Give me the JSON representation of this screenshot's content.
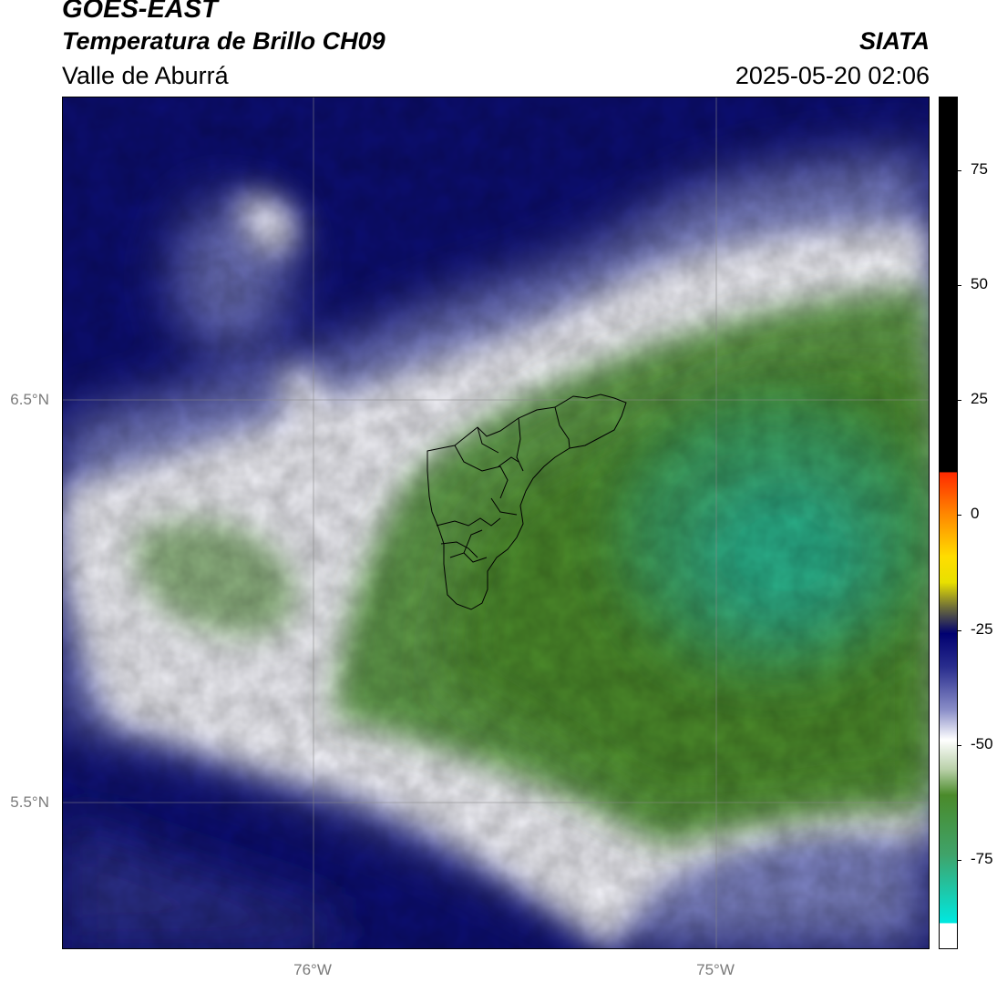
{
  "title": {
    "satellite": "GOES-EAST",
    "product": "Temperatura de Brillo CH09",
    "region": "Valle de Aburrá",
    "organization": "SIATA",
    "datetime": "2025-05-20 02:06"
  },
  "map": {
    "lat_labels": [
      "6.5°N",
      "5.5°N"
    ],
    "lon_labels": [
      "76°W",
      "75°W"
    ],
    "gridlines": true,
    "overlay": "municipal boundaries of Valle de Aburrá"
  },
  "colorbar": {
    "tick_labels": [
      "75",
      "50",
      "25",
      "0",
      "-25",
      "-50",
      "-75"
    ],
    "tick_values": [
      75,
      50,
      25,
      0,
      -25,
      -50,
      -75
    ],
    "range": [
      -94,
      91
    ],
    "colors": {
      "above_10": "#000000",
      "warm_red": "#ff2a00",
      "orange": "#ff9900",
      "yellow": "#ffff00",
      "olive": "#6b6b3a",
      "navy": "#000070",
      "lavender": "#9090c8",
      "white": "#ffffff",
      "green": "#4a8a2a",
      "teal_green": "#3fa36a",
      "cyan": "#00e8e0"
    }
  }
}
